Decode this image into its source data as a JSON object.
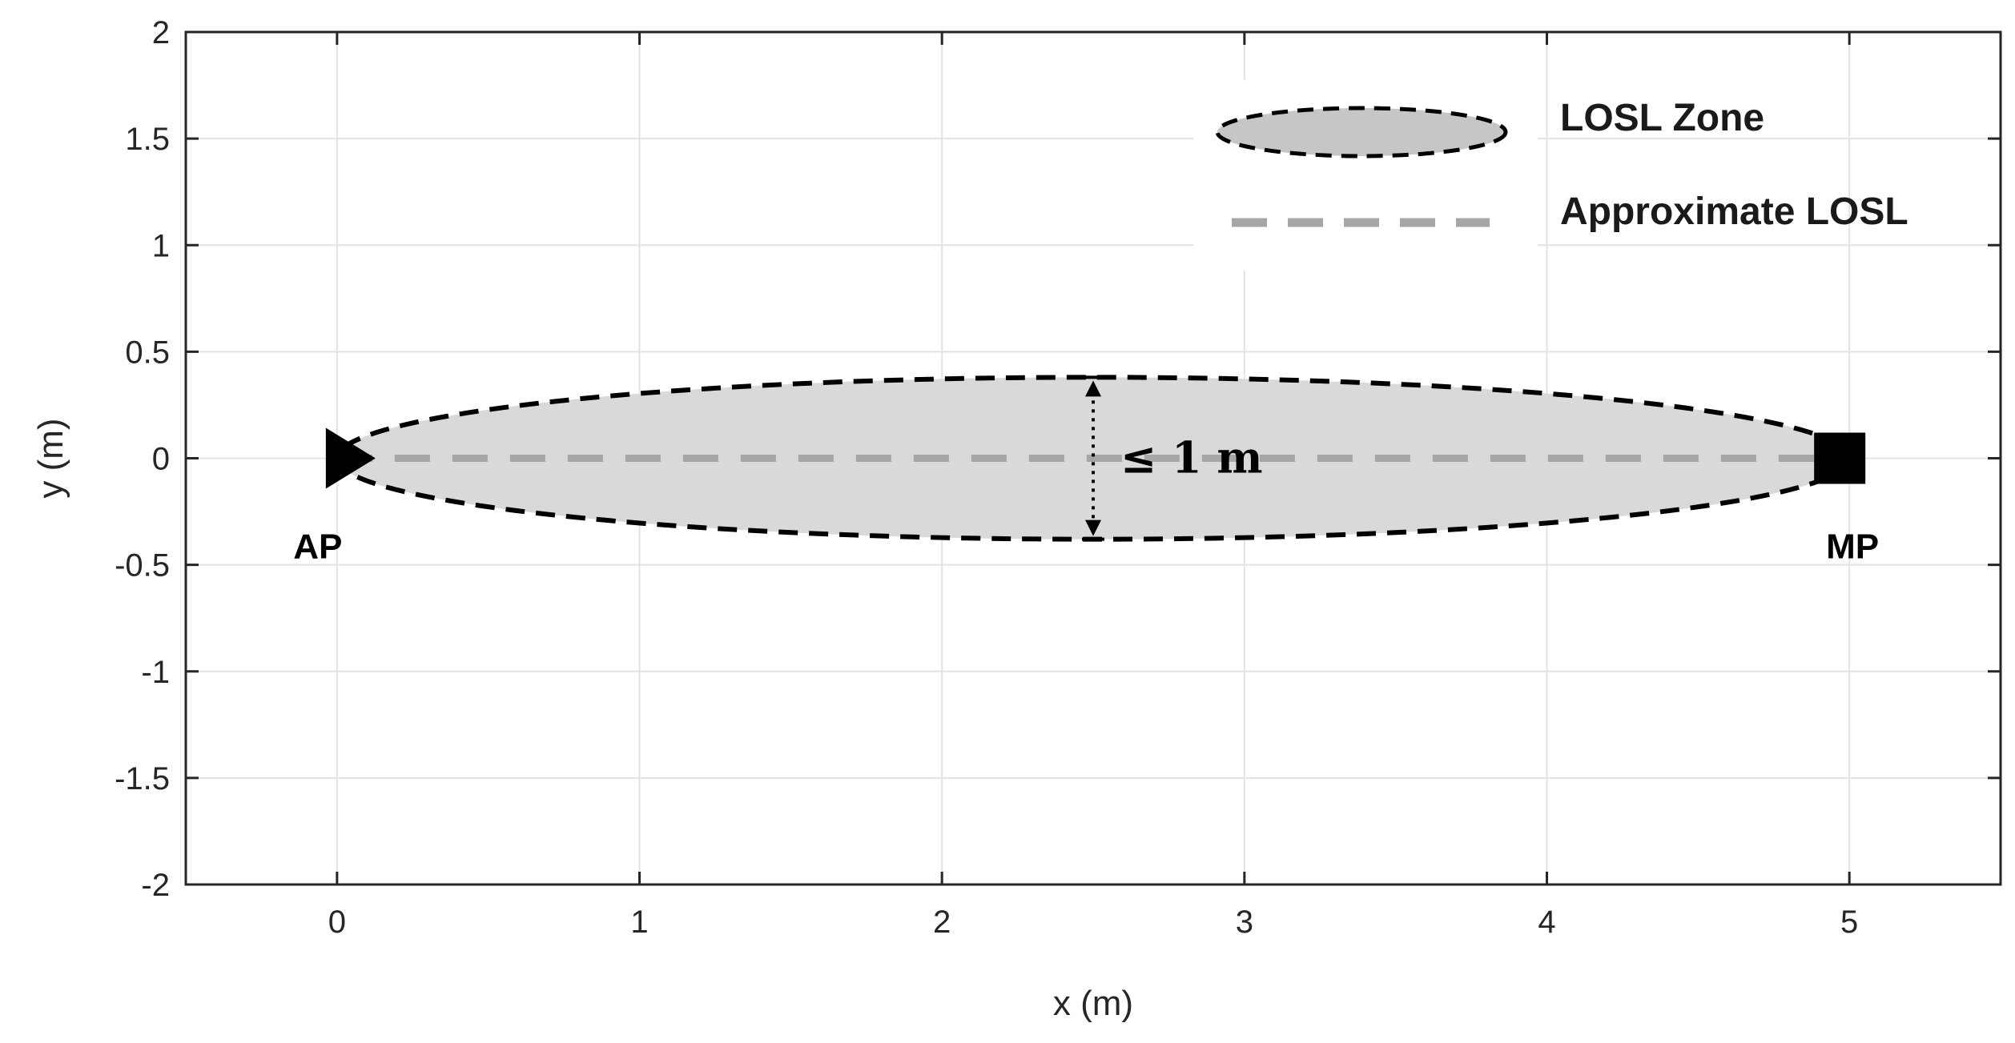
{
  "chart_data": {
    "type": "scatter",
    "title": "",
    "xlabel": "x (m)",
    "ylabel": "y (m)",
    "xlim": [
      -0.5,
      5.5
    ],
    "ylim": [
      -2,
      2
    ],
    "x_ticks": [
      0,
      1,
      2,
      3,
      4,
      5
    ],
    "x_tick_labels": [
      "0",
      "1",
      "2",
      "3",
      "4",
      "5"
    ],
    "y_ticks": [
      2,
      1.5,
      1,
      0.5,
      0,
      -0.5,
      -1,
      -1.5,
      -2
    ],
    "y_tick_labels": [
      "2",
      "1.5",
      "1",
      "0.5",
      "0",
      "-0.5",
      "-1",
      "-1.5",
      "-2"
    ],
    "grid": true,
    "legend": {
      "placement": "top-right",
      "entries": [
        {
          "name": "LOSL Zone",
          "style": "ellipse"
        },
        {
          "name": "Approximate LOSL",
          "style": "dashed-line"
        }
      ]
    },
    "zone": {
      "center": [
        2.5,
        0
      ],
      "semi_axis_x": 2.5,
      "semi_axis_y": 0.38,
      "fill_color": "#d9d9d9",
      "edge_color": "#000000"
    },
    "losl_line": {
      "x": [
        0,
        5
      ],
      "y": [
        0,
        0
      ],
      "color": "#a6a6a6"
    },
    "points": [
      {
        "label": "AP",
        "x": 0,
        "y": 0,
        "marker": "triangle-right"
      },
      {
        "label": "MP",
        "x": 5,
        "y": 0,
        "marker": "square"
      }
    ],
    "annotation": {
      "text": "≤ 1 m",
      "x": 2.5,
      "y_from": -0.38,
      "y_to": 0.38
    }
  }
}
